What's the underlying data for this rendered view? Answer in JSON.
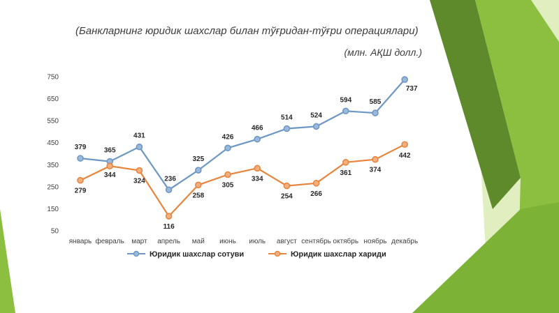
{
  "header": {
    "title": "(Банкларнинг юридик шахслар билан тўғридан-тўғри операциялари)",
    "units": "(млн. АҚШ долл.)"
  },
  "colors": {
    "series_1": "#6d97c4",
    "series_2": "#e8853d",
    "green_dark": "#5f8a2c",
    "green_mid": "#8cbf3f",
    "green_light": "#b3d56a"
  },
  "chart_data": {
    "type": "line",
    "categories": [
      "январь",
      "февраль",
      "март",
      "апрель",
      "май",
      "июнь",
      "июль",
      "август",
      "сентябрь",
      "октябрь",
      "ноябрь",
      "декабрь"
    ],
    "series": [
      {
        "name": "Юридик шахслар сотуви",
        "values": [
          379,
          365,
          431,
          236,
          325,
          426,
          466,
          514,
          524,
          594,
          585,
          737
        ]
      },
      {
        "name": "Юридик шахслар хариди",
        "values": [
          279,
          344,
          324,
          116,
          258,
          305,
          334,
          254,
          266,
          361,
          374,
          442
        ]
      }
    ],
    "yticks": [
      50,
      150,
      250,
      350,
      450,
      550,
      650,
      750
    ],
    "ylim": [
      50,
      750
    ],
    "grid": false,
    "legend_position": "bottom"
  }
}
